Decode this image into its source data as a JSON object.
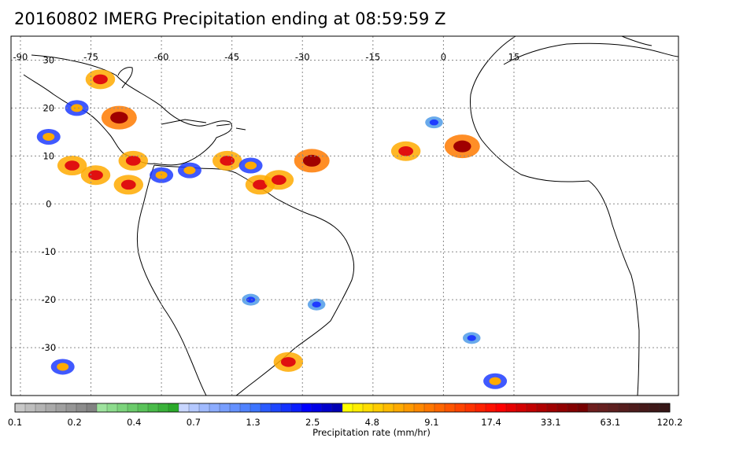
{
  "title": "20160802 IMERG Precipitation ending at 08:59:59 Z",
  "map": {
    "projection": "equirectangular",
    "lon_range": [
      -92,
      50
    ],
    "lat_range": [
      -40,
      35
    ],
    "grid": true,
    "lon_labels": [
      {
        "lon": -90,
        "text": "-90"
      },
      {
        "lon": -75,
        "text": "-75"
      },
      {
        "lon": -60,
        "text": "-60"
      },
      {
        "lon": -45,
        "text": "-45"
      },
      {
        "lon": -30,
        "text": "-30"
      },
      {
        "lon": -15,
        "text": "-15"
      },
      {
        "lon": 0,
        "text": "0"
      },
      {
        "lon": 15,
        "text": "15"
      }
    ],
    "lat_labels": [
      {
        "lat": 30,
        "text": "30"
      },
      {
        "lat": 20,
        "text": "20"
      },
      {
        "lat": 10,
        "text": "10"
      },
      {
        "lat": 0,
        "text": "0"
      },
      {
        "lat": -10,
        "text": "-10"
      },
      {
        "lat": -20,
        "text": "-20"
      },
      {
        "lat": -30,
        "text": "-30"
      }
    ],
    "precip_cells": [
      {
        "lon": -73,
        "lat": 26,
        "intensity": 3
      },
      {
        "lon": -78,
        "lat": 20,
        "intensity": 2
      },
      {
        "lon": -69,
        "lat": 18,
        "intensity": 4
      },
      {
        "lon": -84,
        "lat": 14,
        "intensity": 2
      },
      {
        "lon": -79,
        "lat": 8,
        "intensity": 3
      },
      {
        "lon": -74,
        "lat": 6,
        "intensity": 3
      },
      {
        "lon": -67,
        "lat": 4,
        "intensity": 3
      },
      {
        "lon": -66,
        "lat": 9,
        "intensity": 3
      },
      {
        "lon": -60,
        "lat": 6,
        "intensity": 2
      },
      {
        "lon": -54,
        "lat": 7,
        "intensity": 2
      },
      {
        "lon": -46,
        "lat": 9,
        "intensity": 3
      },
      {
        "lon": -41,
        "lat": 8,
        "intensity": 2
      },
      {
        "lon": -39,
        "lat": 4,
        "intensity": 3
      },
      {
        "lon": -35,
        "lat": 5,
        "intensity": 3
      },
      {
        "lon": -28,
        "lat": 9,
        "intensity": 4
      },
      {
        "lon": -8,
        "lat": 11,
        "intensity": 3
      },
      {
        "lon": 4,
        "lat": 12,
        "intensity": 4
      },
      {
        "lon": -2,
        "lat": 17,
        "intensity": 1
      },
      {
        "lon": -33,
        "lat": -33,
        "intensity": 3
      },
      {
        "lon": -81,
        "lat": -34,
        "intensity": 2
      },
      {
        "lon": 6,
        "lat": -28,
        "intensity": 1
      },
      {
        "lon": 11,
        "lat": -37,
        "intensity": 2
      },
      {
        "lon": -27,
        "lat": -21,
        "intensity": 1
      },
      {
        "lon": -41,
        "lat": -20,
        "intensity": 1
      }
    ],
    "colors": {
      "grid": "#8a8a8a",
      "frame": "#000000",
      "coast": "#000000"
    }
  },
  "colorbar": {
    "title": "Precipitation rate (mm/hr)",
    "tick_labels": [
      "0.1",
      "0.2",
      "0.4",
      "0.7",
      "1.3",
      "2.5",
      "4.8",
      "9.1",
      "17.4",
      "33.1",
      "63.1",
      "120.2"
    ],
    "colors": [
      "#c8c8c8",
      "#bebebe",
      "#b4b4b4",
      "#aaaaaa",
      "#a0a0a0",
      "#969696",
      "#8c8c8c",
      "#828282",
      "#9ee39e",
      "#8ddc8d",
      "#7cd47c",
      "#6bcb6b",
      "#5ac35a",
      "#49bb49",
      "#3ab23a",
      "#2baa2b",
      "#c8d6ff",
      "#b4c8ff",
      "#a0baff",
      "#8cacff",
      "#789eff",
      "#6490ff",
      "#5082ff",
      "#3c74ff",
      "#2a5aff",
      "#1e46ff",
      "#1432ff",
      "#0a1eff",
      "#0000ff",
      "#0000e6",
      "#0000cc",
      "#0000b4",
      "#ffff00",
      "#ffee00",
      "#ffdd00",
      "#ffcc00",
      "#ffbb00",
      "#ffaa00",
      "#ff9900",
      "#ff8800",
      "#ff7700",
      "#ff6600",
      "#ff5500",
      "#ff4400",
      "#ff3300",
      "#ff2200",
      "#ff1100",
      "#ff0000",
      "#e60000",
      "#d40000",
      "#c20000",
      "#b00000",
      "#a00000",
      "#920000",
      "#840000",
      "#760000",
      "#6e1e1e",
      "#662020",
      "#5e2020",
      "#561e1e",
      "#4e1c1c",
      "#461a1a",
      "#3e1818",
      "#361616"
    ]
  }
}
